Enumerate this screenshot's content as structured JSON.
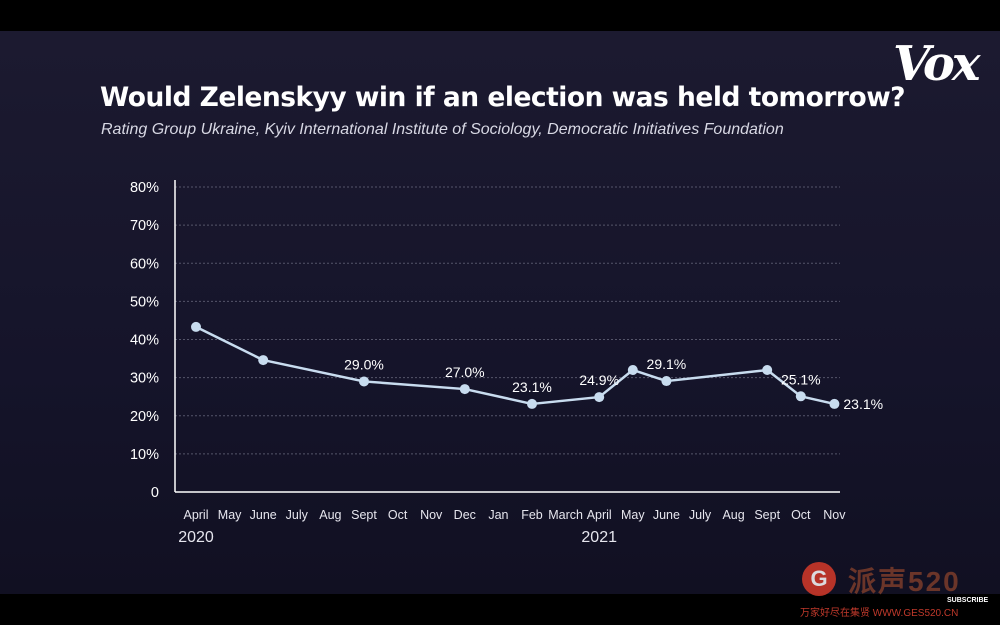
{
  "title": "Would Zelenskyy win if an election was held tomorrow?",
  "subtitle": "Rating Group Ukraine, Kyiv International Institute of Sociology, Democratic Initiatives Foundation",
  "logo": "Vox",
  "watermark": {
    "badge": "G",
    "text": "派声520",
    "url": "万家好尽在集贤 WWW.GES520.CN"
  },
  "subscribe_label": "SUBSCRIBE",
  "colors": {
    "background": "#15142a",
    "line": "#c8dcef",
    "axis": "#ffffff",
    "grid": "#55556a",
    "text": "#ffffff"
  },
  "chart_data": {
    "type": "line",
    "title": "Would Zelenskyy win if an election was held tomorrow?",
    "subtitle": "Rating Group Ukraine, Kyiv International Institute of Sociology, Democratic Initiatives Foundation",
    "xlabel": "",
    "ylabel": "",
    "ylim": [
      0,
      80
    ],
    "yticks": [
      0,
      10,
      20,
      30,
      40,
      50,
      60,
      70,
      80
    ],
    "ytick_labels": [
      "0",
      "10%",
      "20%",
      "30%",
      "40%",
      "50%",
      "60%",
      "70%",
      "80%"
    ],
    "grid": true,
    "categories": [
      "April",
      "May",
      "June",
      "July",
      "Aug",
      "Sept",
      "Oct",
      "Nov",
      "Dec",
      "Jan",
      "Feb",
      "March",
      "April",
      "May",
      "June",
      "July",
      "Aug",
      "Sept",
      "Oct",
      "Nov"
    ],
    "year_labels": [
      {
        "label": "2020",
        "category_index": 0
      },
      {
        "label": "2021",
        "category_index": 12
      }
    ],
    "series": [
      {
        "values": [
          43.3,
          null,
          34.6,
          null,
          null,
          29.0,
          null,
          null,
          27.0,
          null,
          23.1,
          null,
          24.9,
          32.0,
          29.1,
          null,
          null,
          32.0,
          25.1,
          23.1
        ],
        "data_labels": [
          {
            "index": 5,
            "text": "29.0%"
          },
          {
            "index": 8,
            "text": "27.0%"
          },
          {
            "index": 10,
            "text": "23.1%"
          },
          {
            "index": 12,
            "text": "24.9%"
          },
          {
            "index": 14,
            "text": "29.1%"
          },
          {
            "index": 18,
            "text": "25.1%"
          },
          {
            "index": 19,
            "text": "23.1%"
          }
        ]
      }
    ]
  }
}
